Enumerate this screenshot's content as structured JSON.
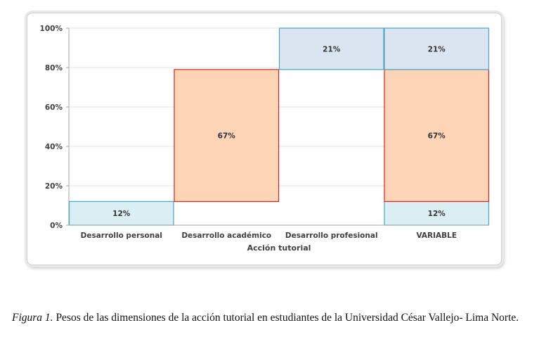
{
  "chart_data": {
    "type": "bar",
    "subtype": "stacked-floating",
    "xlabel": "Acción tutorial",
    "ylabel": "",
    "ylim": [
      0,
      100
    ],
    "yticks": [
      0,
      20,
      40,
      60,
      80,
      100
    ],
    "ytick_labels": [
      "0%",
      "20%",
      "40%",
      "60%",
      "80%",
      "100%"
    ],
    "grid": true,
    "categories": [
      "Desarrollo personal",
      "Desarrollo académico",
      "Desarrollo profesional",
      "VARIABLE"
    ],
    "segments": [
      {
        "category": "Desarrollo personal",
        "from": 0,
        "to": 12,
        "label": "12%",
        "fill": "#dbeef3",
        "stroke": "#4ba3c7"
      },
      {
        "category": "Desarrollo académico",
        "from": 12,
        "to": 79,
        "label": "67%",
        "fill": "#fbd5b5",
        "stroke": "#e0201b"
      },
      {
        "category": "Desarrollo profesional",
        "from": 79,
        "to": 100,
        "label": "21%",
        "fill": "#dbe5f1",
        "stroke": "#4ba3c7"
      },
      {
        "category": "VARIABLE",
        "from": 0,
        "to": 12,
        "label": "12%",
        "fill": "#dbeef3",
        "stroke": "#4ba3c7"
      },
      {
        "category": "VARIABLE",
        "from": 12,
        "to": 79,
        "label": "67%",
        "fill": "#fbd5b5",
        "stroke": "#e0201b"
      },
      {
        "category": "VARIABLE",
        "from": 79,
        "to": 100,
        "label": "21%",
        "fill": "#dbe5f1",
        "stroke": "#4ba3c7"
      }
    ]
  },
  "caption": {
    "label": "Figura 1.",
    "text": " Pesos de las dimensiones de la acción tutorial en estudiantes de la Universidad César Vallejo- Lima Norte."
  }
}
